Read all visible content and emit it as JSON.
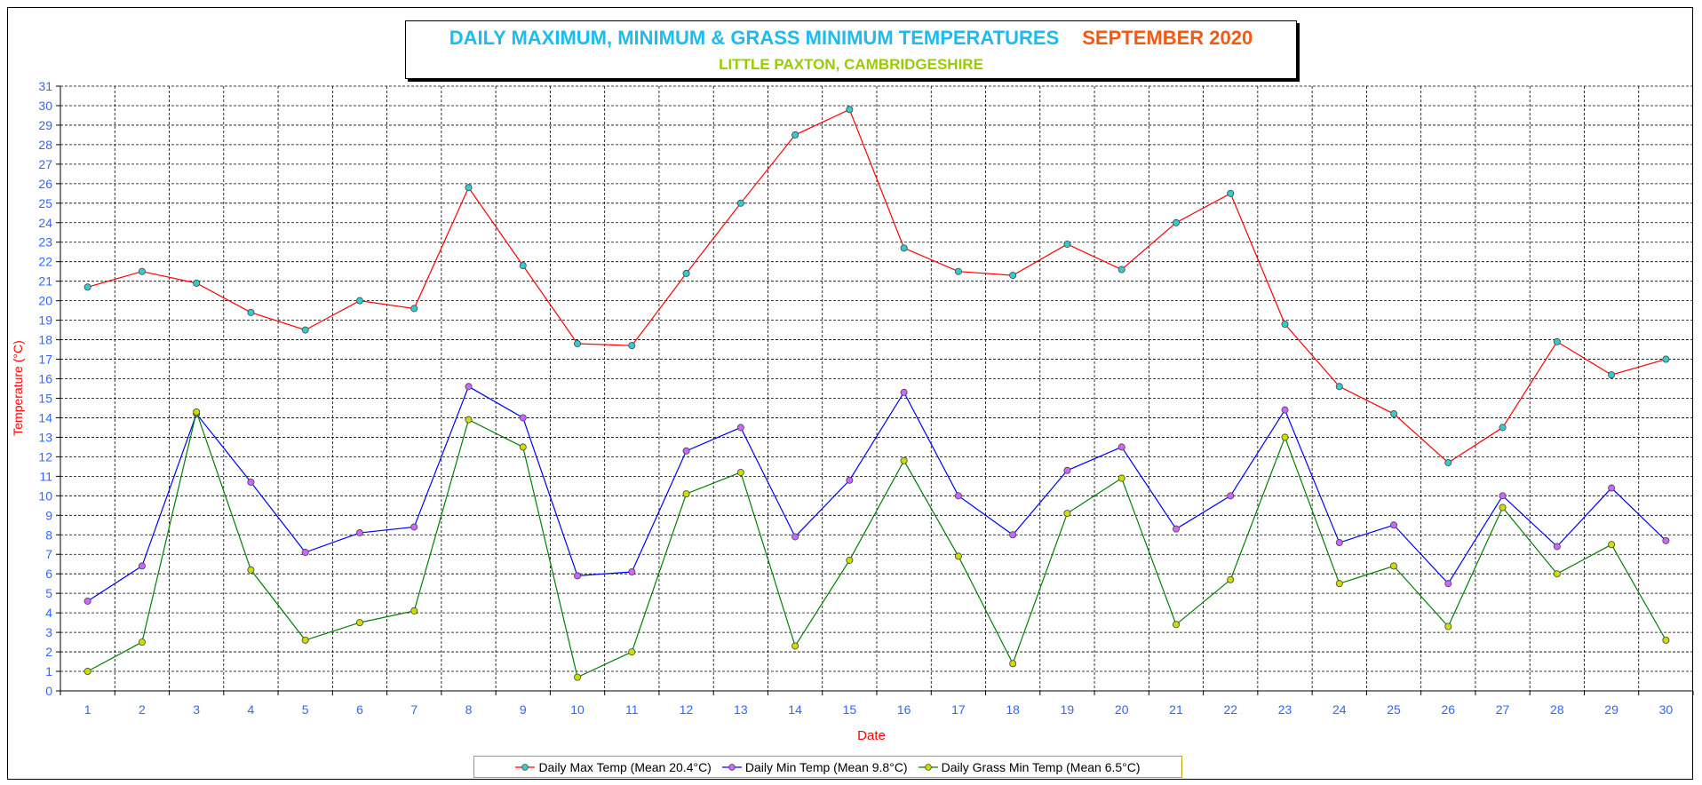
{
  "chart_data": {
    "type": "line",
    "title": "DAILY MAXIMUM, MINIMUM & GRASS MINIMUM TEMPERATURES",
    "title_period": "SEPTEMBER 2020",
    "subtitle": "LITTLE PAXTON, CAMBRIDGESHIRE",
    "xlabel": "Date",
    "ylabel": "Temperature (°C)",
    "ylim": [
      0,
      31
    ],
    "y_ticks": [
      "0",
      "1",
      "2",
      "3",
      "4",
      "5",
      "6",
      "7",
      "8",
      "9",
      "10",
      "11",
      "12",
      "13",
      "14",
      "15",
      "16",
      "17",
      "18",
      "19",
      "20",
      "21",
      "22",
      "23",
      "24",
      "25",
      "26",
      "27",
      "28",
      "29",
      "30",
      "31"
    ],
    "x": [
      "1",
      "2",
      "3",
      "4",
      "5",
      "6",
      "7",
      "8",
      "9",
      "10",
      "11",
      "12",
      "13",
      "14",
      "15",
      "16",
      "17",
      "18",
      "19",
      "20",
      "21",
      "22",
      "23",
      "24",
      "25",
      "26",
      "27",
      "28",
      "29",
      "30"
    ],
    "grid": true,
    "legend_position": "bottom",
    "series": [
      {
        "name": "Daily Max Temp (Mean 20.4°C)",
        "line_color": "#ff0000",
        "marker_color": "#33cccc",
        "values": [
          20.7,
          21.5,
          20.9,
          19.4,
          18.5,
          20.0,
          19.6,
          25.8,
          21.8,
          17.8,
          17.7,
          21.4,
          25.0,
          28.5,
          29.8,
          22.7,
          21.5,
          21.3,
          22.9,
          21.6,
          24.0,
          25.5,
          18.8,
          15.6,
          14.2,
          11.7,
          13.5,
          17.9,
          16.2,
          17.0
        ]
      },
      {
        "name": "Daily Min Temp (Mean 9.8°C)",
        "line_color": "#0000ff",
        "marker_color": "#cc66ff",
        "values": [
          4.6,
          6.4,
          14.2,
          10.7,
          7.1,
          8.1,
          8.4,
          15.6,
          14.0,
          5.9,
          6.1,
          12.3,
          13.5,
          7.9,
          10.8,
          15.3,
          10.0,
          8.0,
          11.3,
          12.5,
          8.3,
          10.0,
          14.4,
          7.6,
          8.5,
          5.5,
          10.0,
          7.4,
          10.4,
          7.7
        ]
      },
      {
        "name": "Daily Grass Min Temp (Mean 6.5°C)",
        "line_color": "#008000",
        "marker_color": "#ccdd00",
        "values": [
          1.0,
          2.5,
          14.3,
          6.2,
          2.6,
          3.5,
          4.1,
          13.9,
          12.5,
          0.7,
          2.0,
          10.1,
          11.2,
          2.3,
          6.7,
          11.8,
          6.9,
          1.4,
          9.1,
          10.9,
          3.4,
          5.7,
          13.0,
          5.5,
          6.4,
          3.3,
          9.4,
          6.0,
          7.5,
          2.6
        ]
      }
    ]
  },
  "colors": {
    "axis_text": "#3366ff",
    "axis_title": "#ff0000",
    "grid": "#000000"
  }
}
